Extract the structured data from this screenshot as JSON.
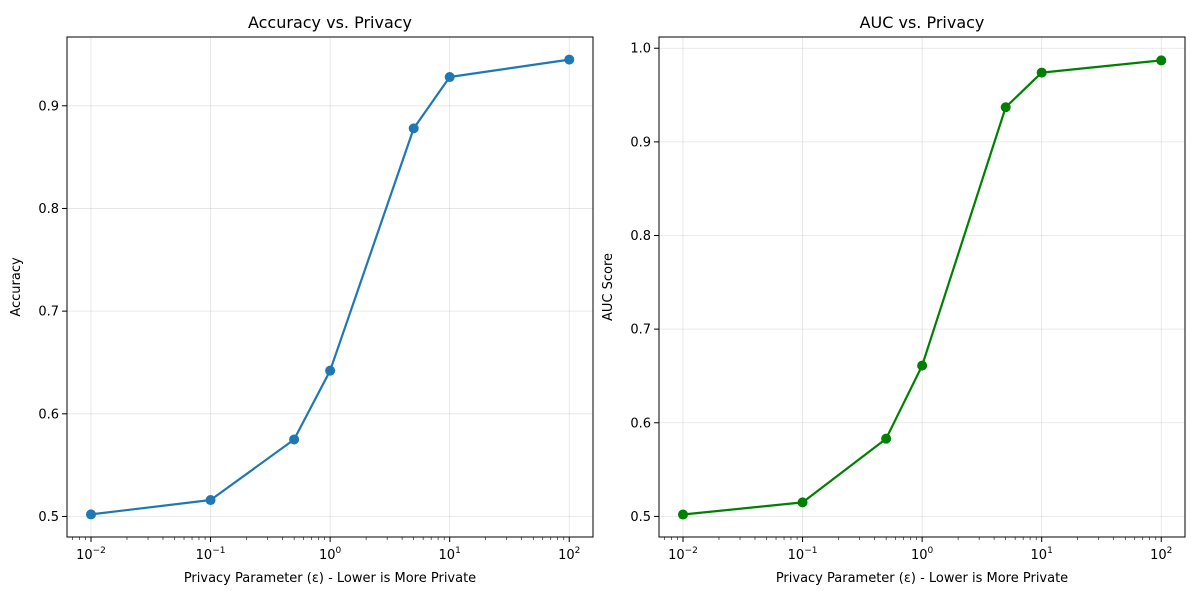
{
  "chart_data": [
    {
      "type": "line",
      "title": "Accuracy vs. Privacy",
      "xlabel": "Privacy Parameter (ε) - Lower is More Private",
      "ylabel": "Accuracy",
      "xscale": "log",
      "x": [
        0.01,
        0.1,
        0.5,
        1,
        5,
        10,
        100
      ],
      "series": [
        {
          "values": [
            0.502,
            0.516,
            0.575,
            0.642,
            0.878,
            0.928,
            0.945
          ],
          "color": "#1f77b4"
        }
      ],
      "xlim": [
        0.0063,
        158
      ],
      "ylim": [
        0.48,
        0.967
      ],
      "xticks": [
        {
          "base": "10",
          "exp": "−2"
        },
        {
          "base": "10",
          "exp": "−1"
        },
        {
          "base": "10",
          "exp": "0"
        },
        {
          "base": "10",
          "exp": "1"
        },
        {
          "base": "10",
          "exp": "2"
        }
      ],
      "yticks": [
        "0.5",
        "0.6",
        "0.7",
        "0.8",
        "0.9"
      ],
      "grid": true
    },
    {
      "type": "line",
      "title": "AUC vs. Privacy",
      "xlabel": "Privacy Parameter (ε) - Lower is More Private",
      "ylabel": "AUC Score",
      "xscale": "log",
      "x": [
        0.01,
        0.1,
        0.5,
        1,
        5,
        10,
        100
      ],
      "series": [
        {
          "values": [
            0.502,
            0.515,
            0.583,
            0.661,
            0.937,
            0.974,
            0.987
          ],
          "color": "#008000"
        }
      ],
      "xlim": [
        0.0063,
        158
      ],
      "ylim": [
        0.478,
        1.012
      ],
      "xticks": [
        {
          "base": "10",
          "exp": "−2"
        },
        {
          "base": "10",
          "exp": "−1"
        },
        {
          "base": "10",
          "exp": "0"
        },
        {
          "base": "10",
          "exp": "1"
        },
        {
          "base": "10",
          "exp": "2"
        }
      ],
      "yticks": [
        "0.5",
        "0.6",
        "0.7",
        "0.8",
        "0.9",
        "1.0"
      ],
      "grid": true
    }
  ]
}
